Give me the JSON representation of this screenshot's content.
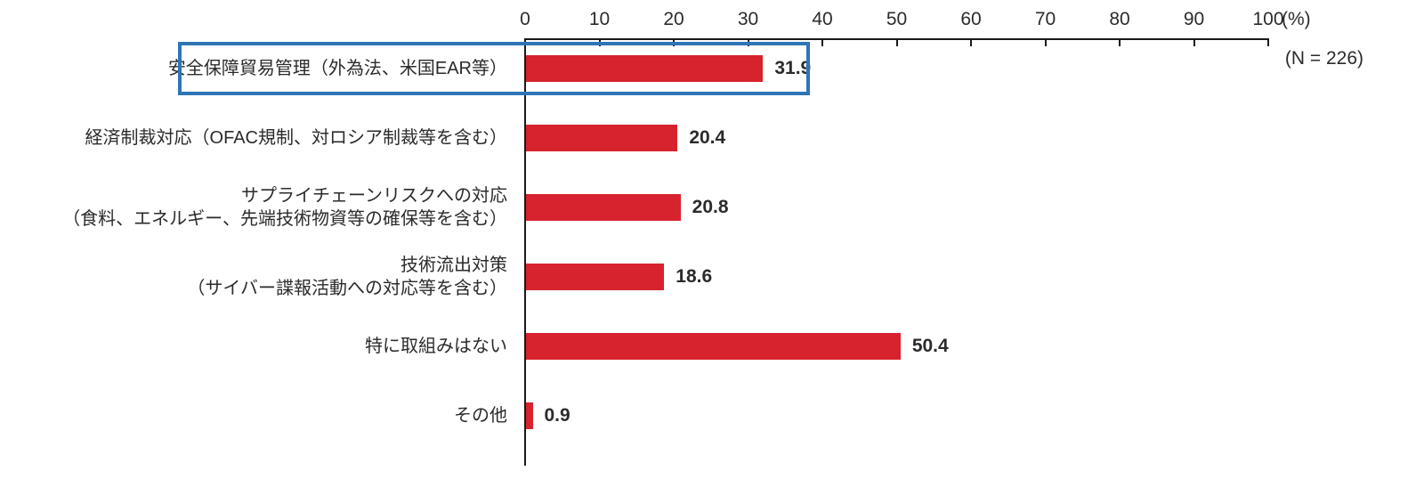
{
  "chart_data": {
    "type": "bar",
    "orientation": "horizontal",
    "title": "",
    "categories": [
      "安全保障貿易管理（外為法、米国EAR等）",
      "経済制裁対応（OFAC規制、対ロシア制裁等を含む）",
      "サプライチェーンリスクへの対応\n（食料、エネルギー、先端技術物資等の確保等を含む）",
      "技術流出対策\n（サイバー諜報活動への対応等を含む）",
      "特に取組みはない",
      "その他"
    ],
    "values": [
      31.9,
      20.4,
      20.8,
      18.6,
      50.4,
      0.9
    ],
    "value_labels": [
      "31.9",
      "20.4",
      "20.8",
      "18.6",
      "50.4",
      "0.9"
    ],
    "axis": {
      "min": 0,
      "max": 100,
      "step": 10,
      "tick_labels": [
        "0",
        "10",
        "20",
        "30",
        "40",
        "50",
        "60",
        "70",
        "80",
        "90",
        "100"
      ],
      "unit_label": "(%)"
    },
    "sample_size_label": "(N = 226)",
    "highlight_index": 0,
    "grid": false,
    "legend": "none",
    "colors": {
      "bar": "#d7232e",
      "highlight_border": "#2e75b6",
      "axis": "#1a1a1a",
      "text": "#2b2b2b"
    }
  }
}
